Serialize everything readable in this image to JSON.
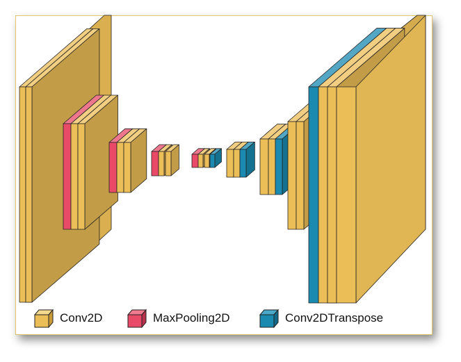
{
  "legend": {
    "items": [
      {
        "label": "Conv2D",
        "color": "#ecbe57",
        "icon": "cube-icon"
      },
      {
        "label": "MaxPooling2D",
        "color": "#e84a68",
        "icon": "cube-icon"
      },
      {
        "label": "Conv2DTranspose",
        "color": "#1a8ab0",
        "icon": "cube-icon"
      }
    ]
  },
  "layers": [
    {
      "type": "Conv2D"
    },
    {
      "type": "Conv2D"
    },
    {
      "type": "MaxPooling2D"
    },
    {
      "type": "Conv2D"
    },
    {
      "type": "Conv2D"
    },
    {
      "type": "MaxPooling2D"
    },
    {
      "type": "Conv2D"
    },
    {
      "type": "Conv2D"
    },
    {
      "type": "MaxPooling2D"
    },
    {
      "type": "Conv2D"
    },
    {
      "type": "Conv2D"
    },
    {
      "type": "MaxPooling2D"
    },
    {
      "type": "Conv2D"
    },
    {
      "type": "Conv2D"
    },
    {
      "type": "Conv2DTranspose"
    },
    {
      "type": "Conv2D"
    },
    {
      "type": "Conv2D"
    },
    {
      "type": "Conv2DTranspose"
    },
    {
      "type": "Conv2D"
    },
    {
      "type": "Conv2D"
    },
    {
      "type": "Conv2DTranspose"
    },
    {
      "type": "Conv2D"
    },
    {
      "type": "Conv2D"
    },
    {
      "type": "Conv2DTranspose"
    },
    {
      "type": "Conv2D"
    },
    {
      "type": "Conv2D"
    }
  ]
}
